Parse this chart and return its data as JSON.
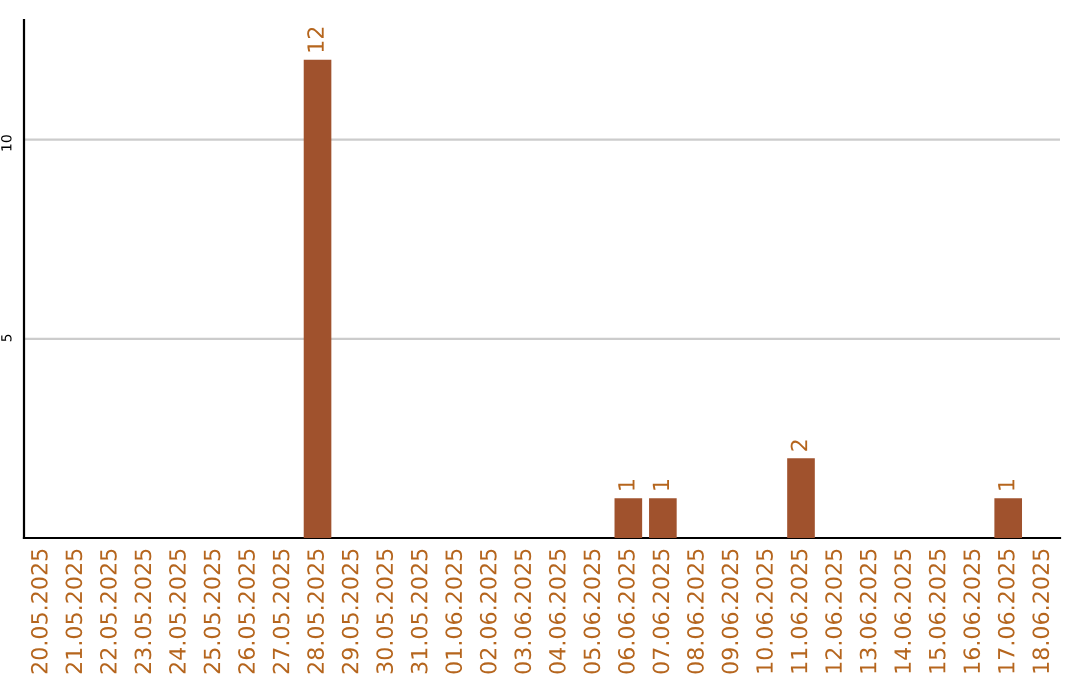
{
  "chart_data": {
    "type": "bar",
    "categories": [
      "20.05.2025",
      "21.05.2025",
      "22.05.2025",
      "23.05.2025",
      "24.05.2025",
      "25.05.2025",
      "26.05.2025",
      "27.05.2025",
      "28.05.2025",
      "29.05.2025",
      "30.05.2025",
      "31.05.2025",
      "01.06.2025",
      "02.06.2025",
      "03.06.2025",
      "04.06.2025",
      "05.06.2025",
      "06.06.2025",
      "07.06.2025",
      "08.06.2025",
      "09.06.2025",
      "10.06.2025",
      "11.06.2025",
      "12.06.2025",
      "13.06.2025",
      "14.06.2025",
      "15.06.2025",
      "16.06.2025",
      "17.06.2025",
      "18.06.2025"
    ],
    "values": [
      0,
      0,
      0,
      0,
      0,
      0,
      0,
      0,
      12,
      0,
      0,
      0,
      0,
      0,
      0,
      0,
      0,
      1,
      1,
      0,
      0,
      0,
      2,
      0,
      0,
      0,
      0,
      0,
      1,
      0
    ],
    "value_labels": [
      null,
      null,
      null,
      null,
      null,
      null,
      null,
      null,
      "12",
      null,
      null,
      null,
      null,
      null,
      null,
      null,
      null,
      "1",
      "1",
      null,
      null,
      null,
      "2",
      null,
      null,
      null,
      null,
      null,
      "1",
      null
    ],
    "color": "#a0522d",
    "ylim": [
      0,
      13
    ],
    "yticks": [
      5,
      10
    ],
    "grid": "y"
  }
}
